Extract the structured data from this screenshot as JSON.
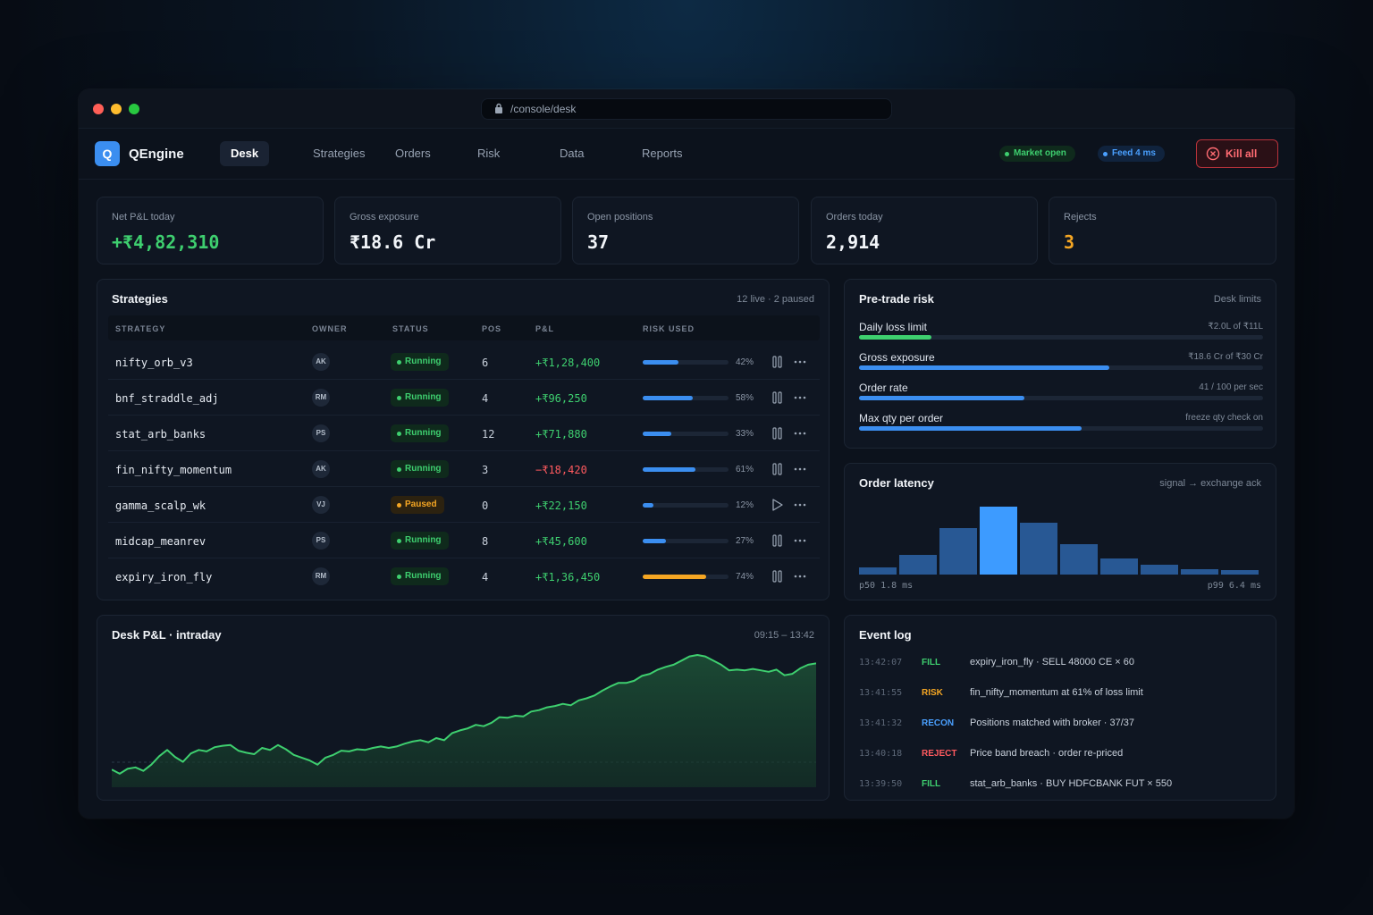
{
  "url": "/console/desk",
  "app": {
    "logo_letter": "Q",
    "name": "QEngine"
  },
  "nav": {
    "tabs": [
      "Desk",
      "Strategies",
      "Orders",
      "Risk",
      "Data",
      "Reports"
    ],
    "active": "Desk",
    "market_status": "Market open",
    "feed_status": "Feed 4 ms",
    "kill_label": "Kill all"
  },
  "kpis": [
    {
      "label": "Net P&L today",
      "value": "+₹4,82,310",
      "tone": "green"
    },
    {
      "label": "Gross exposure",
      "value": "₹18.6 Cr",
      "tone": "default"
    },
    {
      "label": "Open positions",
      "value": "37",
      "tone": "default"
    },
    {
      "label": "Orders today",
      "value": "2,914",
      "tone": "default"
    },
    {
      "label": "Rejects",
      "value": "3",
      "tone": "orange"
    }
  ],
  "strategies": {
    "title": "Strategies",
    "summary": "12 live · 2 paused",
    "columns": [
      "STRATEGY",
      "OWNER",
      "STATUS",
      "POS",
      "P&L",
      "RISK USED"
    ],
    "rows": [
      {
        "name": "nifty_orb_v3",
        "owner": "AK",
        "status": "Running",
        "pos": "6",
        "pnl": "+₹1,28,400",
        "risk": 42,
        "risk_label": "42%"
      },
      {
        "name": "bnf_straddle_adj",
        "owner": "RM",
        "status": "Running",
        "pos": "4",
        "pnl": "+₹96,250",
        "risk": 58,
        "risk_label": "58%"
      },
      {
        "name": "stat_arb_banks",
        "owner": "PS",
        "status": "Running",
        "pos": "12",
        "pnl": "+₹71,880",
        "risk": 33,
        "risk_label": "33%"
      },
      {
        "name": "fin_nifty_momentum",
        "owner": "AK",
        "status": "Running",
        "pos": "3",
        "pnl": "−₹18,420",
        "risk": 61,
        "risk_label": "61%"
      },
      {
        "name": "gamma_scalp_wk",
        "owner": "VJ",
        "status": "Paused",
        "pos": "0",
        "pnl": "+₹22,150",
        "risk": 12,
        "risk_label": "12%"
      },
      {
        "name": "midcap_meanrev",
        "owner": "PS",
        "status": "Running",
        "pos": "8",
        "pnl": "+₹45,600",
        "risk": 27,
        "risk_label": "27%"
      },
      {
        "name": "expiry_iron_fly",
        "owner": "RM",
        "status": "Running",
        "pos": "4",
        "pnl": "+₹1,36,450",
        "risk": 74,
        "risk_label": "74%"
      }
    ]
  },
  "pretrade": {
    "title": "Pre-trade risk",
    "subtitle": "Desk limits",
    "limits": [
      {
        "label": "Daily loss limit",
        "value": "₹2.0L of ₹11L",
        "fill": 0.18,
        "color": "#3ecf6f"
      },
      {
        "label": "Gross exposure",
        "value": "₹18.6 Cr of ₹30 Cr",
        "fill": 0.62,
        "color": "#3b8ef0"
      },
      {
        "label": "Order rate",
        "value": "41 / 100 per sec",
        "fill": 0.41,
        "color": "#3b8ef0"
      },
      {
        "label": "Max qty per order",
        "value": "freeze qty check on",
        "fill": 0.55,
        "color": "#3b8ef0"
      }
    ]
  },
  "latency": {
    "title": "Order latency",
    "subtitle": "signal → exchange ack",
    "p50": "p50 1.8 ms",
    "p99": "p99 6.4 ms",
    "histogram": [
      0.1,
      0.29,
      0.68,
      1.0,
      0.76,
      0.45,
      0.24,
      0.14,
      0.08,
      0.06
    ],
    "peak_index": 3
  },
  "pnl_chart": {
    "title": "Desk P&L · intraday",
    "range": "09:15 – 13:42"
  },
  "chart_data": {
    "type": "area",
    "title": "Desk P&L · intraday",
    "x_range": "09:15 – 13:42",
    "series": [
      {
        "values": [
          0.1,
          0.04,
          0.11,
          0.13,
          0.08,
          0.17,
          0.29,
          0.38,
          0.28,
          0.21,
          0.33,
          0.38,
          0.36,
          0.42,
          0.44,
          0.45,
          0.37,
          0.34,
          0.32,
          0.41,
          0.38,
          0.45,
          0.39,
          0.31,
          0.27,
          0.23,
          0.17,
          0.27,
          0.31,
          0.37,
          0.36,
          0.39,
          0.38,
          0.41,
          0.43,
          0.41,
          0.43,
          0.47,
          0.5,
          0.52,
          0.49,
          0.55,
          0.52,
          0.62,
          0.66,
          0.69,
          0.74,
          0.72,
          0.77,
          0.85,
          0.84,
          0.87,
          0.86,
          0.93,
          0.95,
          0.99,
          1.01,
          1.04,
          1.02,
          1.09,
          1.12,
          1.16,
          1.23,
          1.29,
          1.34,
          1.34,
          1.37,
          1.44,
          1.47,
          1.53,
          1.57,
          1.6,
          1.66,
          1.72,
          1.74,
          1.72,
          1.66,
          1.6,
          1.52,
          1.53,
          1.52,
          1.54,
          1.52,
          1.5,
          1.53,
          1.45,
          1.47,
          1.55,
          1.6,
          1.62
        ]
      }
    ],
    "color": "#3ecf6f"
  },
  "eventlog": {
    "title": "Event log",
    "events": [
      {
        "time": "13:42:07",
        "tag": "FILL",
        "color": "#3ecf6f",
        "msg": "expiry_iron_fly · SELL 48000 CE × 60"
      },
      {
        "time": "13:41:55",
        "tag": "RISK",
        "color": "#f5a623",
        "msg": "fin_nifty_momentum at 61% of loss limit"
      },
      {
        "time": "13:41:32",
        "tag": "RECON",
        "color": "#4aa0ff",
        "msg": "Positions matched with broker · 37/37"
      },
      {
        "time": "13:40:18",
        "tag": "REJECT",
        "color": "#ff5a5f",
        "msg": "Price band breach · order re-priced"
      },
      {
        "time": "13:39:50",
        "tag": "FILL",
        "color": "#3ecf6f",
        "msg": "stat_arb_banks · BUY HDFCBANK FUT × 550"
      }
    ]
  }
}
